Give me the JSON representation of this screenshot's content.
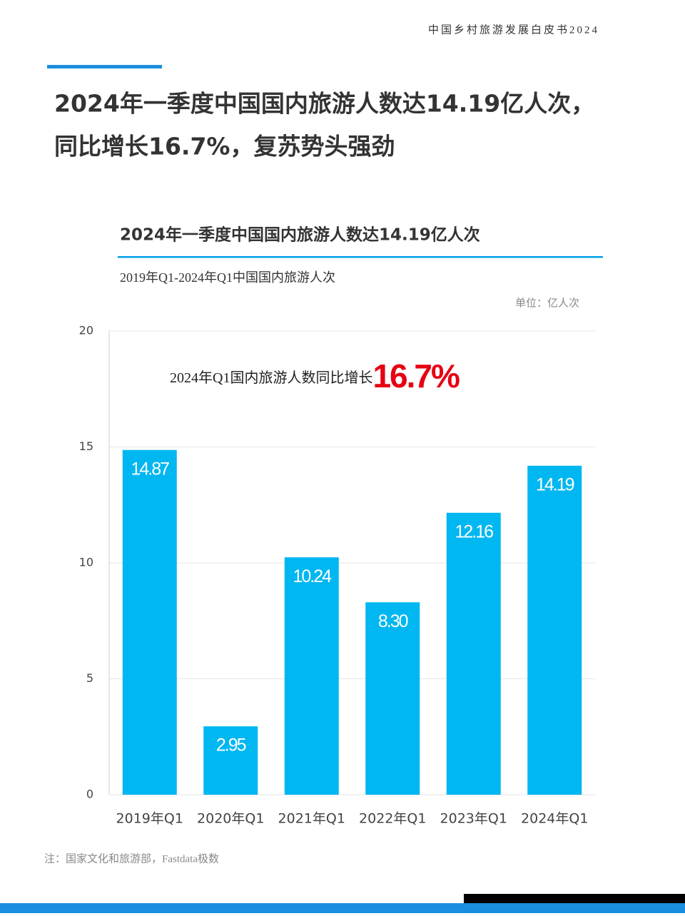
{
  "header": {
    "title": "中国乡村旅游发展白皮书2024"
  },
  "headline": [
    "2024年一季度中国国内旅游人数达14.19亿人次，",
    "同比增长16.7%，复苏势头强劲"
  ],
  "chart_data": {
    "type": "bar",
    "title": "2024年一季度中国国内旅游人数达14.19亿人次",
    "subtitle": "2019年Q1-2024年Q1中国国内旅游人次",
    "unit": "单位：亿人次",
    "annotation": "2024年Q1国内旅游人数同比增长",
    "annotation_highlight": "16.7%",
    "categories": [
      "2019年Q1",
      "2020年Q1",
      "2021年Q1",
      "2022年Q1",
      "2023年Q1",
      "2024年Q1"
    ],
    "values": [
      14.87,
      2.95,
      10.24,
      8.3,
      12.16,
      14.19
    ],
    "value_labels": [
      "14.87",
      "2.95",
      "10.24",
      "8.30",
      "12.16",
      "14.19"
    ],
    "color": "#00b7f1",
    "ylim": [
      0,
      20
    ],
    "yticks": [
      0,
      5,
      10,
      15,
      20
    ],
    "grid": true
  },
  "note": "注：国家文化和旅游部，Fastdata极数"
}
